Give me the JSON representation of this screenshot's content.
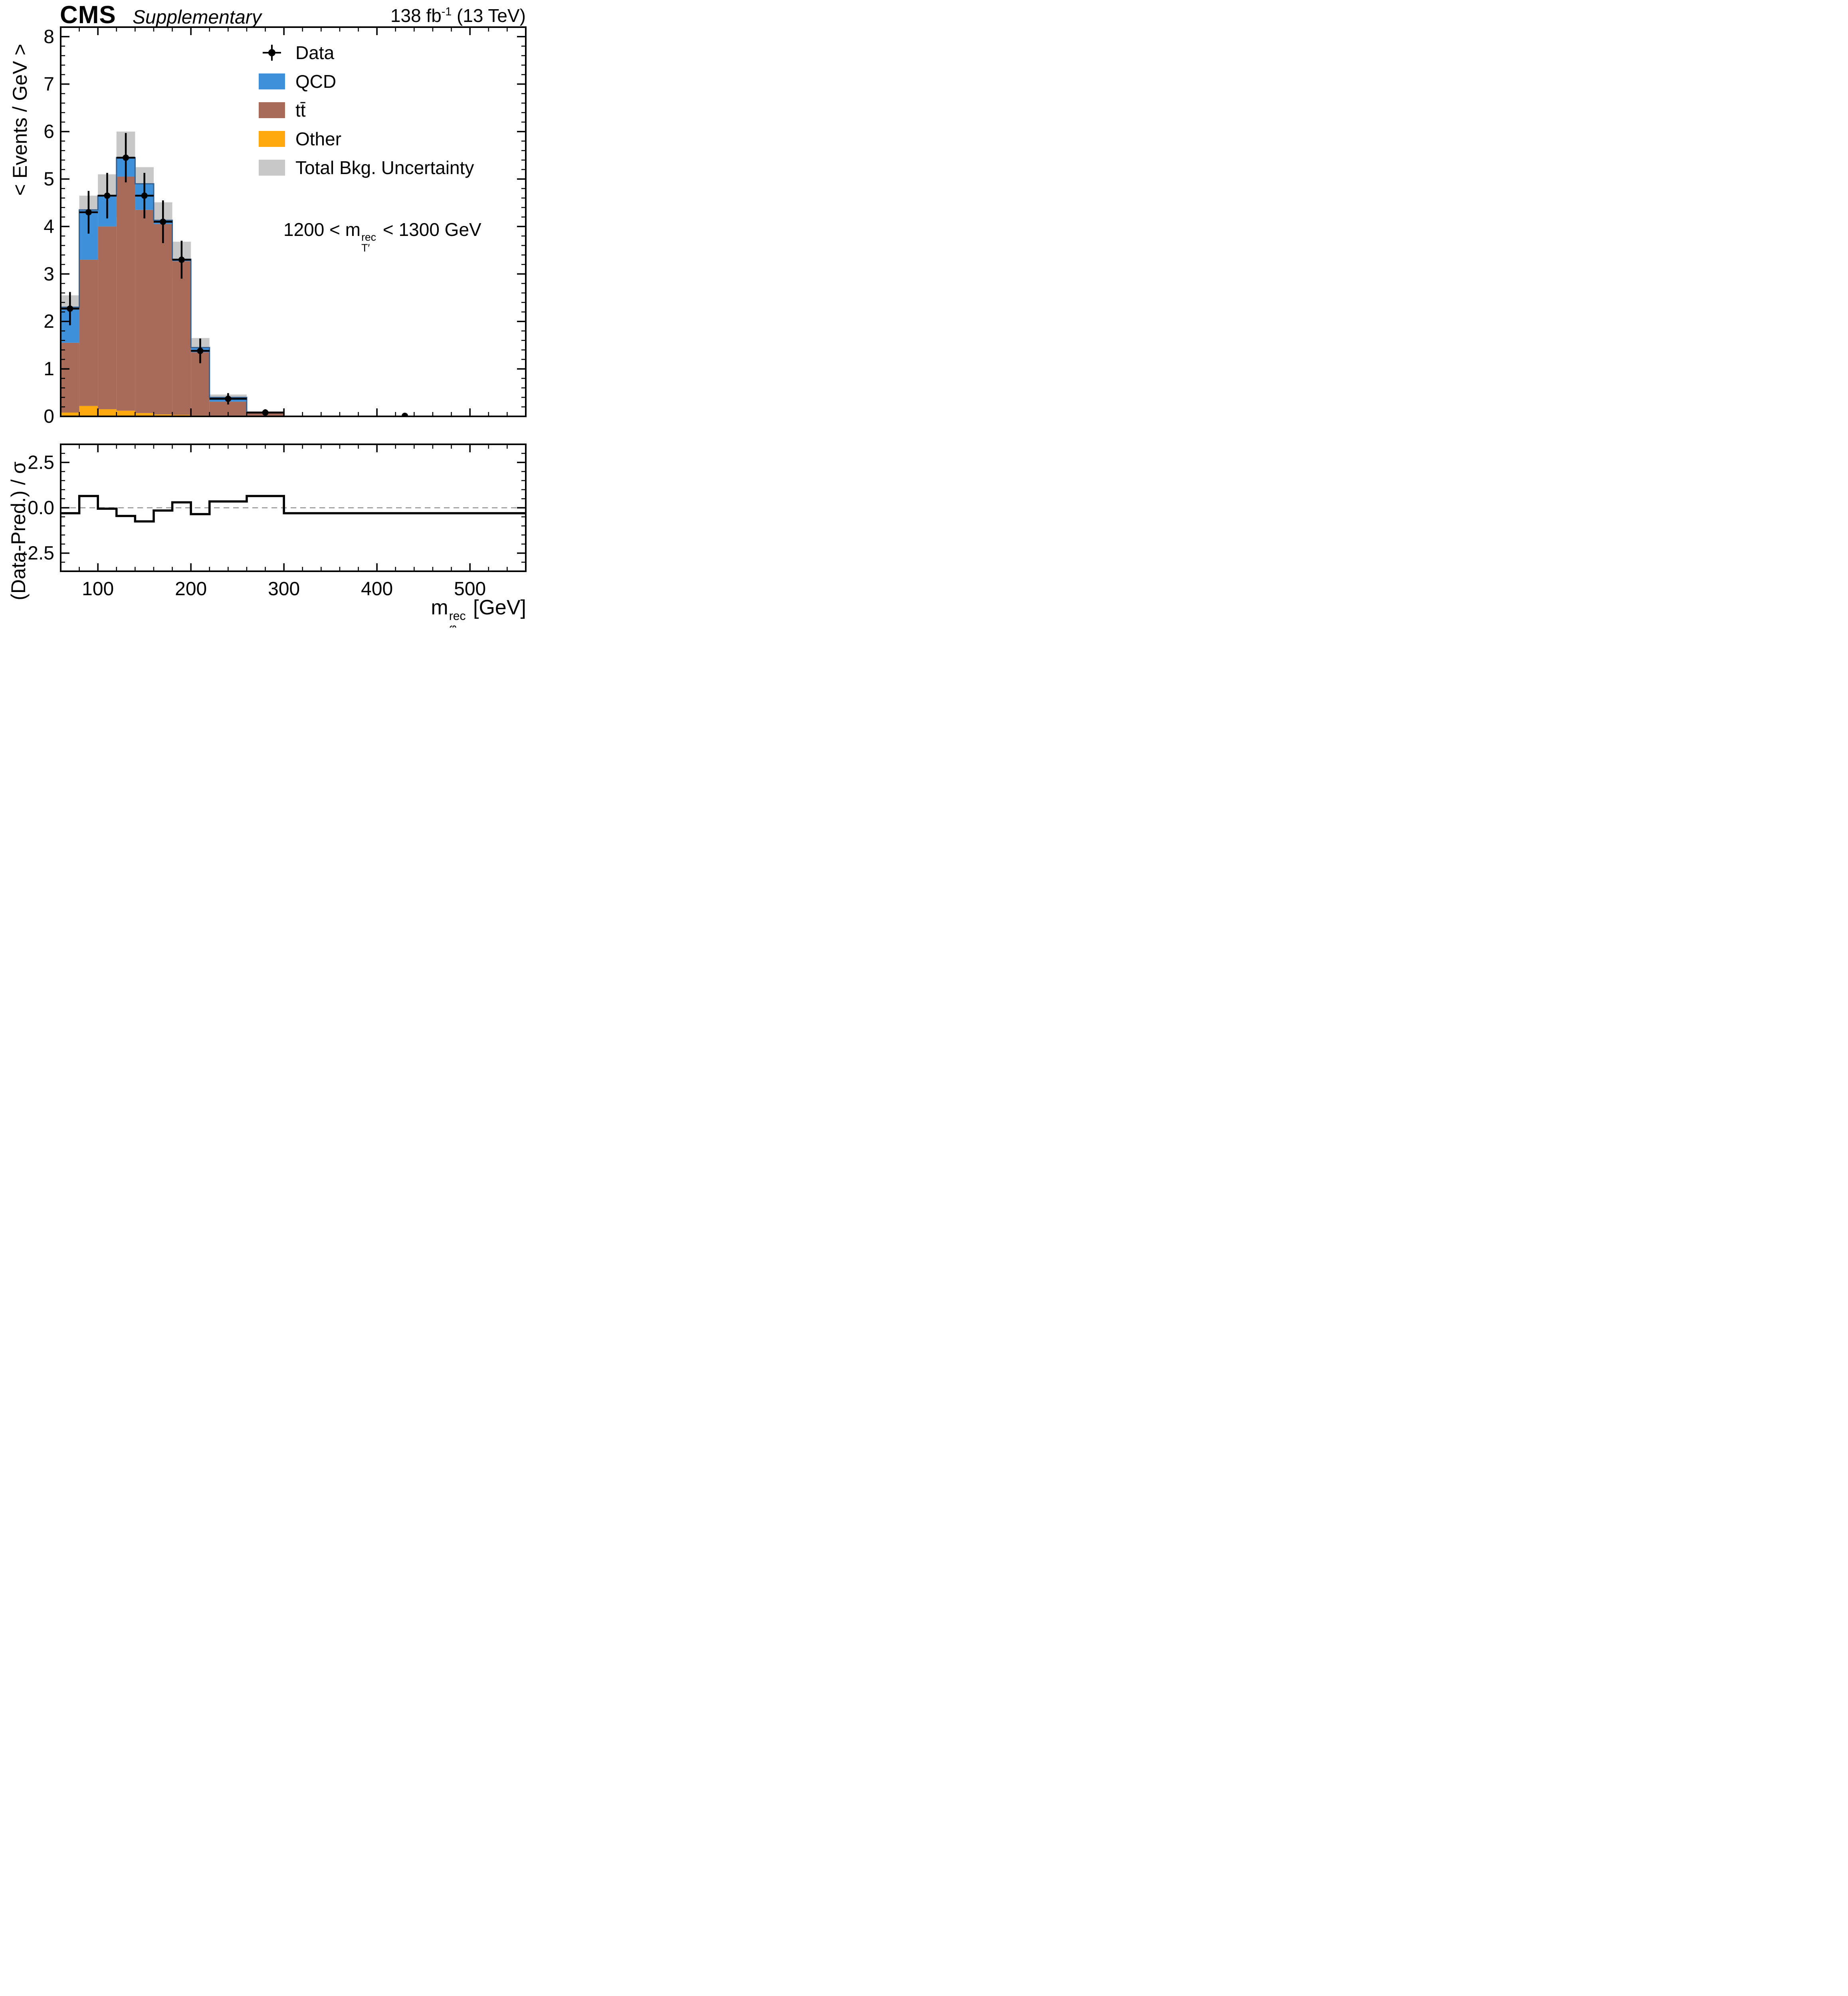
{
  "header": {
    "experiment": "CMS",
    "sublabel": "Supplementary",
    "lumi_prefix": "138 fb",
    "lumi_sup": "-1",
    "lumi_suffix": " (13 TeV)"
  },
  "legend": {
    "items": [
      {
        "label": "Data",
        "type": "marker",
        "color": "#000000"
      },
      {
        "label": "QCD",
        "type": "fill",
        "color": "#3f90da"
      },
      {
        "label": "tt̄",
        "type": "fill",
        "color": "#a96b59"
      },
      {
        "label": "Other",
        "type": "fill",
        "color": "#ffa90e"
      },
      {
        "label": "Total Bkg. Uncertainty",
        "type": "fill",
        "color": "#c8c8c8"
      }
    ]
  },
  "annotation": {
    "pre": "1200 < m",
    "sup": "rec",
    "sub": "T′",
    "post": " < 1300 GeV"
  },
  "axis_labels": {
    "y_top": "< Events / GeV >",
    "y_ratio": "(Data-Pred.) / σ",
    "x_pre": "m",
    "x_sup": "rec",
    "x_sub": "φ",
    "x_post": " [GeV]"
  },
  "chart_data": {
    "type": "bar",
    "subtype": "stacked-histogram-with-ratio",
    "title": "CMS Supplementary, 138 fb-1 (13 TeV), 1200 < mT'rec < 1300 GeV",
    "xlabel": "m_phi_rec [GeV]",
    "ylabel_top": "< Events / GeV >",
    "ylabel_ratio": "(Data-Pred.) / sigma",
    "legend_position": "upper right",
    "grid": false,
    "x_edges": [
      60,
      80,
      100,
      120,
      140,
      160,
      180,
      200,
      220,
      260,
      300,
      560
    ],
    "series": [
      {
        "name": "Other",
        "color": "#ffa90e",
        "values": [
          0.08,
          0.22,
          0.15,
          0.12,
          0.07,
          0.04,
          0.03,
          0.02,
          0.01,
          0.0,
          0.0
        ]
      },
      {
        "name": "tt̄",
        "color": "#a96b59",
        "values": [
          1.47,
          3.08,
          3.85,
          4.93,
          4.28,
          4.01,
          3.24,
          1.33,
          0.3,
          0.07,
          0.0
        ]
      },
      {
        "name": "QCD",
        "color": "#3f90da",
        "values": [
          0.75,
          1.05,
          0.65,
          0.4,
          0.55,
          0.08,
          0.04,
          0.1,
          0.09,
          0.01,
          0.0
        ]
      }
    ],
    "total_background": [
      2.3,
      4.35,
      4.65,
      5.45,
      4.9,
      4.13,
      3.31,
      1.45,
      0.4,
      0.08,
      0.0
    ],
    "total_unc": [
      0.25,
      0.3,
      0.45,
      0.55,
      0.35,
      0.38,
      0.37,
      0.2,
      0.06,
      0.03,
      0.0
    ],
    "unc_color": "#c8c8c8",
    "outline_color": "#35608f",
    "data": {
      "x": [
        70,
        90,
        110,
        130,
        150,
        170,
        190,
        210,
        240,
        280,
        430
      ],
      "y": [
        2.27,
        4.3,
        4.65,
        5.45,
        4.65,
        4.1,
        3.3,
        1.38,
        0.37,
        0.08,
        0.01
      ],
      "yerr": [
        0.35,
        0.45,
        0.48,
        0.52,
        0.48,
        0.45,
        0.4,
        0.26,
        0.12,
        0.07,
        0.0
      ],
      "xerr": [
        10,
        10,
        10,
        10,
        10,
        10,
        10,
        10,
        20,
        20,
        0
      ]
    },
    "ratio_values": [
      -0.3,
      0.65,
      -0.05,
      -0.45,
      -0.75,
      -0.15,
      0.3,
      -0.35,
      0.35,
      0.65,
      -0.3
    ],
    "x_axis": {
      "min": 60,
      "max": 560,
      "major_ticks": [
        100,
        200,
        300,
        400,
        500
      ],
      "minor_step": 20
    },
    "y_axis_top": {
      "min": 0,
      "max": 8.2,
      "major_ticks": [
        0,
        1,
        2,
        3,
        4,
        5,
        6,
        7,
        8
      ],
      "minor_step": 0.2
    },
    "y_axis_ratio": {
      "min": -3.5,
      "max": 3.5,
      "major_ticks": [
        -2.5,
        0,
        2.5
      ],
      "tick_labels": [
        "-2.5",
        "0.0",
        "2.5"
      ],
      "minor_step": 0.5
    }
  }
}
